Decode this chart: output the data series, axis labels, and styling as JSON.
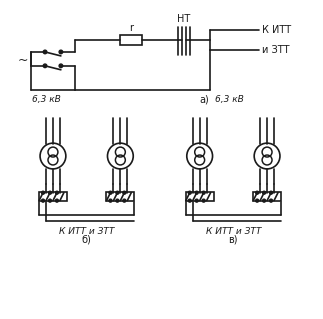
{
  "bg_color": "#ffffff",
  "line_color": "#1a1a1a",
  "lw": 1.2,
  "fig_width": 3.23,
  "fig_height": 3.19,
  "dpi": 100,
  "labels": {
    "label_a": "а)",
    "label_b1": "б)",
    "label_b2": "в)",
    "text_6_3kv_left": "6,3 кВ",
    "text_6_3kv_right": "6,3 кВ",
    "text_nt": "НТ",
    "text_r": "r",
    "text_k_utt": "К ИТТ",
    "text_i_ztt": "и ЗТТ",
    "text_k_utt_b1": "К ИТТ и ЗТТ",
    "text_k_utt_b2": "К ИТТ и ЗТТ",
    "text_tilde": "~"
  }
}
